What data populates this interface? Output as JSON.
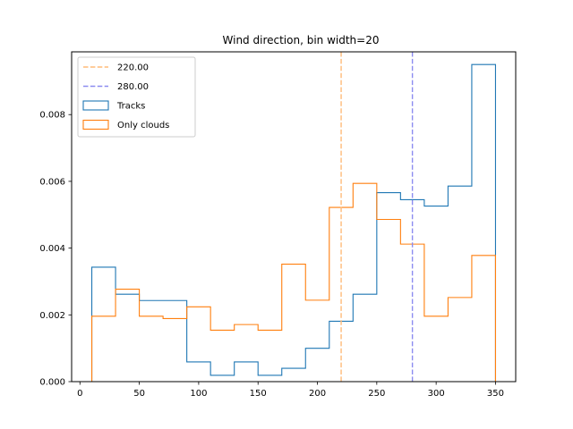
{
  "chart_data": {
    "type": "histogram-step",
    "title": "Wind direction, bin width=20",
    "xlabel": "",
    "ylabel": "",
    "xlim": [
      -7,
      367
    ],
    "ylim": [
      0,
      0.00988
    ],
    "xticks": [
      0,
      50,
      100,
      150,
      200,
      250,
      300,
      350
    ],
    "yticks": [
      0.0,
      0.002,
      0.004,
      0.006,
      0.008
    ],
    "ytick_labels": [
      "0.000",
      "0.002",
      "0.004",
      "0.006",
      "0.008"
    ],
    "grid": false,
    "legend_position": "top-left",
    "bin_edges": [
      10,
      30,
      50,
      70,
      90,
      110,
      130,
      150,
      170,
      190,
      210,
      230,
      250,
      270,
      290,
      310,
      330,
      350
    ],
    "series": [
      {
        "name": "Tracks",
        "color": "#1f77b4",
        "values": [
          0.00343,
          0.00262,
          0.00243,
          0.00243,
          0.00059,
          0.00019,
          0.00059,
          0.00019,
          0.0004,
          0.001,
          0.00181,
          0.00262,
          0.00566,
          0.00545,
          0.00526,
          0.00586,
          0.0095
        ]
      },
      {
        "name": "Only clouds",
        "color": "#ff7f0e",
        "values": [
          0.00196,
          0.00277,
          0.00196,
          0.00189,
          0.00224,
          0.00154,
          0.00171,
          0.00154,
          0.00352,
          0.00244,
          0.00522,
          0.00594,
          0.00486,
          0.00412,
          0.00196,
          0.00252,
          0.00378
        ]
      }
    ],
    "vlines": [
      {
        "label": "220.00",
        "x": 220,
        "color": "#ffbb78"
      },
      {
        "label": "280.00",
        "x": 280,
        "color": "#8c8cf0"
      }
    ]
  }
}
